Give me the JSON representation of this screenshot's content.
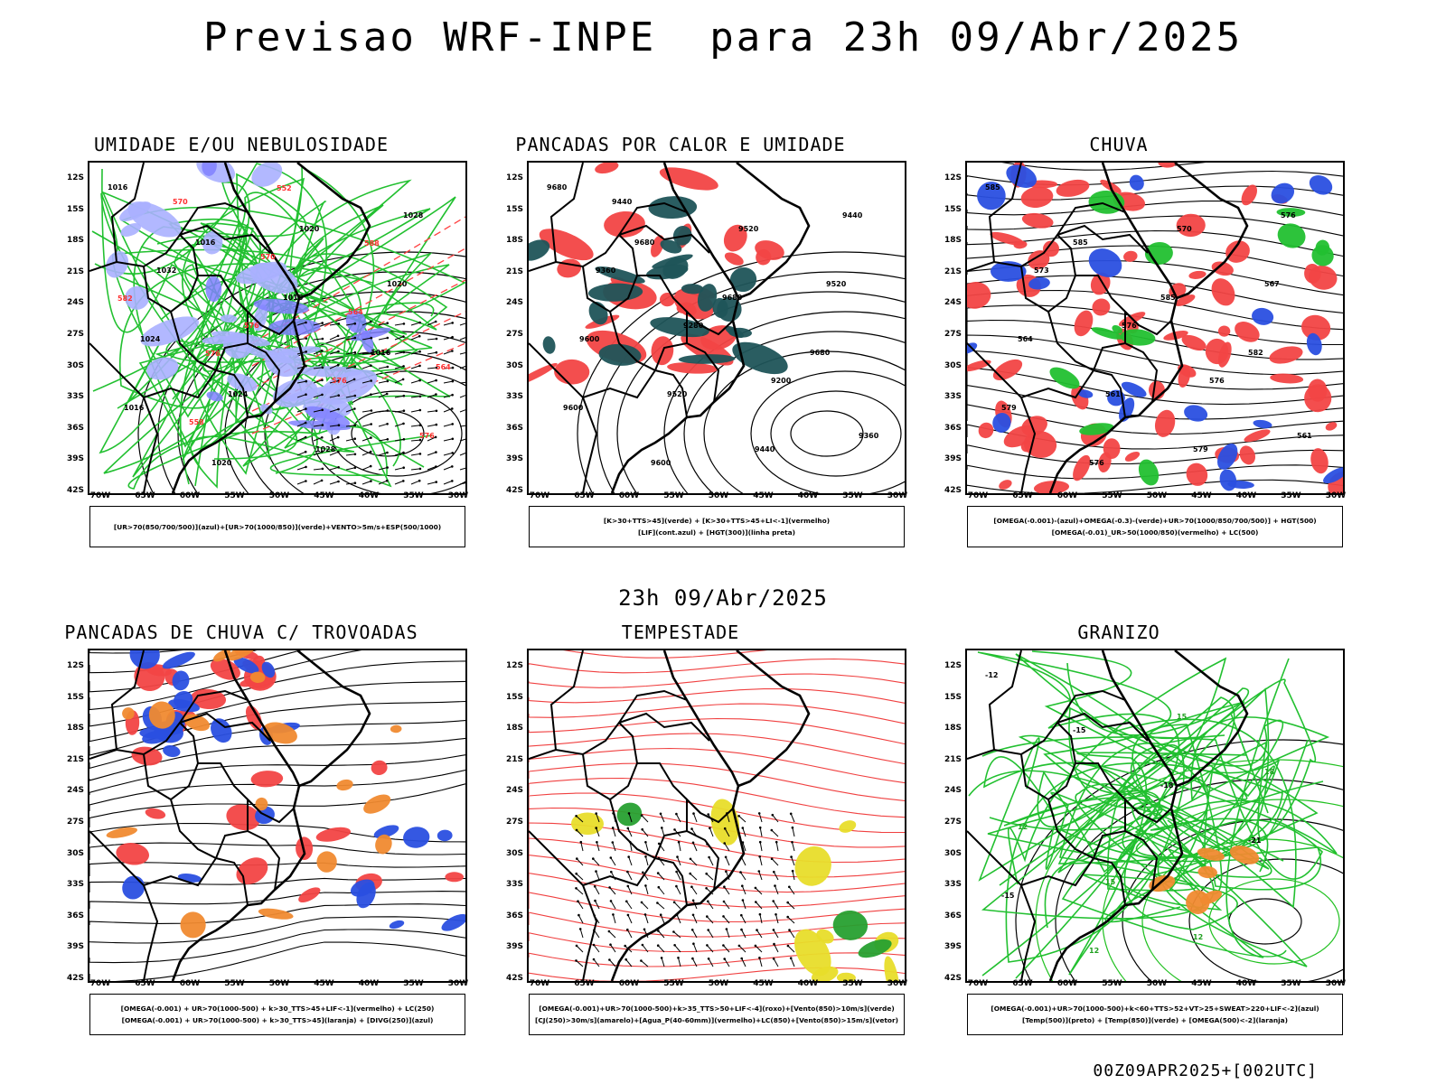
{
  "header": {
    "title": "Previsao WRF-INPE  para 23h 09/Abr/2025",
    "mid_title": "23h 09/Abr/2025",
    "footer": "00Z09APR2025+[002UTC]"
  },
  "axes": {
    "lat_labels": [
      "12S",
      "15S",
      "18S",
      "21S",
      "24S",
      "27S",
      "30S",
      "33S",
      "36S",
      "39S",
      "42S"
    ],
    "lon_labels": [
      "70W",
      "65W",
      "60W",
      "55W",
      "50W",
      "45W",
      "40W",
      "35W",
      "30W"
    ]
  },
  "panels": [
    {
      "id": "umidade",
      "title": "UMIDADE E/OU NEBULOSIDADE",
      "legend": [
        "[UR>70(850/700/500)](azul)+[UR>70(1000/850)](verde)+VENTO>5m/s+ESP(500/1000)"
      ],
      "labels": [
        "1016",
        "1016",
        "1016",
        "1016",
        "1016",
        "1020",
        "1020",
        "1020",
        "1024",
        "1024",
        "1028",
        "1028",
        "1032",
        "576",
        "576",
        "576",
        "570",
        "570",
        "564",
        "564",
        "558",
        "552",
        "588",
        "582",
        "576"
      ]
    },
    {
      "id": "pancadas_calor",
      "title": "PANCADAS POR CALOR E UMIDADE",
      "legend": [
        "[K>30+TTS>45](verde) + [K>30+TTS>45+LI<-1](vermelho)",
        "[LIF](cont.azul) + [HGT(300)](linha preta)"
      ],
      "labels": [
        "9680",
        "9680",
        "9680",
        "9680",
        "9600",
        "9600",
        "9520",
        "9520",
        "9600",
        "9520",
        "9440",
        "9440",
        "9360",
        "9280",
        "9200",
        "9360",
        "9440"
      ]
    },
    {
      "id": "chuva",
      "title": "CHUVA",
      "legend": [
        "[OMEGA(-0.001)-(azul)+OMEGA(-0.3)-(verde)+UR>70(1000/850/700/500)] + HGT(500)",
        "[OMEGA(-0.01)_UR>50(1000/850)(vermelho) + LC(500)"
      ],
      "labels": [
        "585",
        "585",
        "585",
        "582",
        "579",
        "576",
        "570",
        "567",
        "564",
        "561",
        "579",
        "576",
        "573",
        "576",
        "576",
        "561"
      ]
    },
    {
      "id": "trovoadas",
      "title": "PANCADAS DE CHUVA C/ TROVOADAS",
      "legend": [
        "[OMEGA(-0.001) + UR>70(1000-500) + k>30_TTS>45+LIF<-1](vermelho) + LC(250)",
        "[OMEGA(-0.001) + UR>70(1000-500) + k>30_TTS>45](laranja) + [DIVG(250)](azul)"
      ],
      "labels": []
    },
    {
      "id": "tempestade",
      "title": "TEMPESTADE",
      "legend": [
        "[OMEGA(-0.001)+UR>70(1000-500)+k>35_TTS>50+LIF<-4](roxo)+[Vento(850)>10m/s](verde)",
        "[CJ(250)>30m/s](amarelo)+[Agua_P(40-60mm)](vermelho)+LC(850)+[Vento(850)>15m/s](vetor)"
      ],
      "labels": []
    },
    {
      "id": "granizo",
      "title": "GRANIZO",
      "legend": [
        "[OMEGA(-0.001)+UR>70(1000-500)+k<60+TTS>52+VT>25+SWEAT>220+LIF<-2](azul)",
        "[Temp(500)](preto) + [Temp(850)](verde) + [OMEGA(500)<-2](laranja)"
      ],
      "labels": [
        "-12",
        "-15",
        "-18",
        "-21",
        "-15",
        "12",
        "15",
        "18",
        "12",
        "15",
        "12"
      ]
    }
  ]
}
